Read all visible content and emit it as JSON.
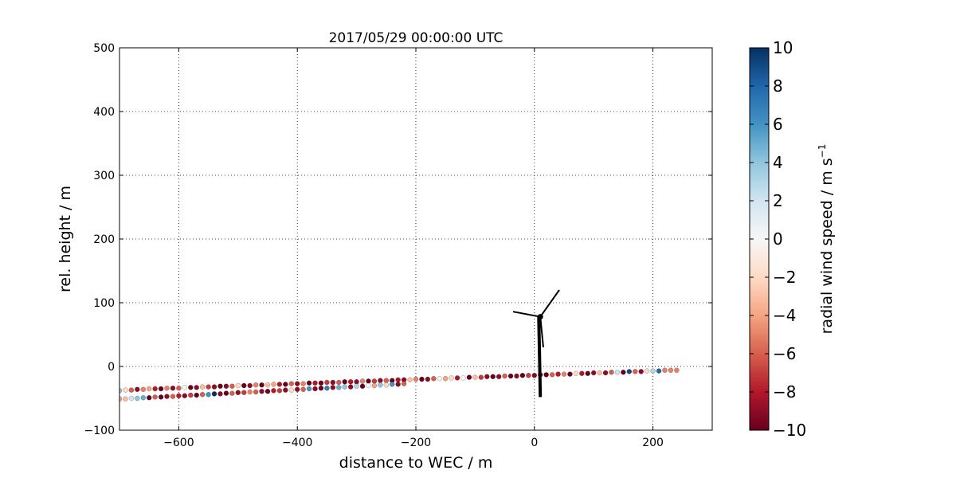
{
  "chart_data": {
    "type": "scatter",
    "title": "2017/05/29 00:00:00 UTC",
    "xlabel": "distance to WEC / m",
    "ylabel": "rel. height / m",
    "xlim": [
      -700,
      300
    ],
    "ylim": [
      -100,
      500
    ],
    "xticks": [
      -600,
      -400,
      -200,
      0,
      200
    ],
    "yticks": [
      -100,
      0,
      100,
      200,
      300,
      400,
      500
    ],
    "xtick_labels": [
      "−600",
      "−400",
      "−200",
      "0",
      "200"
    ],
    "ytick_labels": [
      "−100",
      "0",
      "100",
      "200",
      "300",
      "400",
      "500"
    ],
    "grid": true,
    "colorbar": {
      "label": "radial wind speed / m s",
      "label_superscript": "−1",
      "range": [
        -10,
        10
      ],
      "ticks": [
        10,
        8,
        6,
        4,
        2,
        0,
        -2,
        -4,
        -6,
        -8,
        -10
      ],
      "tick_labels": [
        "10",
        "8",
        "6",
        "4",
        "2",
        "0",
        "−2",
        "−4",
        "−6",
        "−8",
        "−10"
      ],
      "colormap": "RdBu"
    },
    "turbine": {
      "hub": [
        10,
        78
      ],
      "tower_base": [
        10,
        -48
      ],
      "blade_tips": [
        [
          42,
          120
        ],
        [
          -36,
          86
        ],
        [
          15,
          30
        ]
      ]
    },
    "series": [
      {
        "x": [
          -700,
          -690,
          -680,
          -670,
          -660,
          -650,
          -640,
          -630,
          -620,
          -610,
          -600,
          -590,
          -580,
          -570,
          -560,
          -550,
          -540,
          -530,
          -520,
          -510,
          -500,
          -490,
          -480,
          -470,
          -460,
          -450,
          -440,
          -430,
          -420,
          -410,
          -400,
          -390,
          -380,
          -370,
          -360,
          -350,
          -340,
          -330,
          -320,
          -310,
          -300,
          -290,
          -280,
          -270,
          -260,
          -250,
          -240,
          -230,
          -220,
          -210,
          -200,
          -190,
          -180,
          -170,
          -160,
          -150,
          -140,
          -130,
          -120,
          -110,
          -100,
          -90,
          -80,
          -70,
          -60,
          -50,
          -40,
          -30,
          -20,
          -10,
          0,
          10,
          20,
          30,
          40,
          50,
          60,
          70,
          80,
          90,
          100,
          110,
          120,
          130,
          140,
          150,
          160,
          170,
          180,
          190,
          200,
          210,
          220,
          230,
          240,
          -700,
          -690,
          -680,
          -670,
          -660,
          -650,
          -640,
          -630,
          -620,
          -610,
          -600,
          -590,
          -580,
          -570,
          -560,
          -550,
          -540,
          -530,
          -520,
          -510,
          -500,
          -490,
          -480,
          -470,
          -460,
          -450,
          -440,
          -430,
          -420,
          -410,
          -400,
          -390,
          -380,
          -370,
          -360,
          -350,
          -340,
          -330,
          -320,
          -310,
          -300,
          -290,
          -280,
          -270,
          -260,
          -250,
          -240,
          -230,
          -220
        ],
        "y": [
          -38,
          -37,
          -37,
          -36,
          -36,
          -35,
          -35,
          -35,
          -34,
          -34,
          -34,
          -33,
          -33,
          -33,
          -32,
          -32,
          -32,
          -31,
          -31,
          -31,
          -30,
          -30,
          -30,
          -29,
          -29,
          -29,
          -28,
          -28,
          -28,
          -27,
          -27,
          -27,
          -26,
          -26,
          -26,
          -25,
          -25,
          -25,
          -24,
          -24,
          -24,
          -23,
          -23,
          -23,
          -22,
          -22,
          -22,
          -21,
          -21,
          -21,
          -20,
          -20,
          -20,
          -19,
          -19,
          -19,
          -18,
          -18,
          -18,
          -17,
          -17,
          -17,
          -16,
          -16,
          -16,
          -15,
          -15,
          -15,
          -14,
          -14,
          -14,
          -13,
          -13,
          -13,
          -12,
          -12,
          -12,
          -11,
          -11,
          -11,
          -10,
          -10,
          -10,
          -9,
          -9,
          -9,
          -8,
          -8,
          -8,
          -7,
          -7,
          -7,
          -6,
          -6,
          -6,
          -51,
          -51,
          -50,
          -50,
          -49,
          -49,
          -48,
          -48,
          -47,
          -47,
          -46,
          -46,
          -45,
          -45,
          -44,
          -44,
          -43,
          -43,
          -42,
          -42,
          -41,
          -41,
          -40,
          -40,
          -39,
          -39,
          -38,
          -38,
          -37,
          -37,
          -36,
          -36,
          -35,
          -35,
          -34,
          -34,
          -33,
          -33,
          -32,
          -32,
          -31,
          -31,
          -30,
          -30,
          -29,
          -29,
          -28,
          -28,
          -27
        ],
        "c": [
          4,
          -2,
          -6,
          -9,
          -5,
          -4,
          -8,
          -10,
          -5,
          -9,
          -6,
          0,
          -10,
          -9,
          -3,
          -7,
          -9,
          -10,
          -9,
          -6,
          -2,
          -10,
          -9,
          -5,
          -10,
          -3,
          -4,
          -8,
          -10,
          -6,
          -9,
          -5,
          -10,
          -8,
          -10,
          -7,
          -9,
          -6,
          -10,
          -8,
          -9,
          -5,
          -10,
          -7,
          -9,
          -6,
          -10,
          -8,
          -9,
          -3,
          -5,
          -10,
          -9,
          -6,
          0,
          -4,
          -2,
          -8,
          0,
          -10,
          -3,
          -7,
          -9,
          -10,
          -9,
          -6,
          -10,
          -9,
          -10,
          -7,
          -9,
          -9,
          -10,
          -6,
          -8,
          -5,
          -10,
          -2,
          -8,
          -10,
          -9,
          -3,
          -9,
          -6,
          2,
          -10,
          9,
          -6,
          -9,
          -2,
          3,
          8,
          -5,
          -5,
          -5,
          -4,
          -3,
          2,
          4,
          5,
          -10,
          -6,
          -10,
          -9,
          -6,
          -8,
          -9,
          -7,
          -10,
          -6,
          6,
          10,
          -9,
          -10,
          -6,
          -9,
          -7,
          -5,
          -6,
          -9,
          -10,
          -8,
          -7,
          -9,
          -2,
          -9,
          -6,
          6,
          -9,
          -10,
          7,
          -9,
          5,
          4,
          -9,
          3,
          -10,
          0,
          -4,
          4,
          -2,
          6,
          -9,
          -6,
          -8
        ]
      }
    ]
  }
}
